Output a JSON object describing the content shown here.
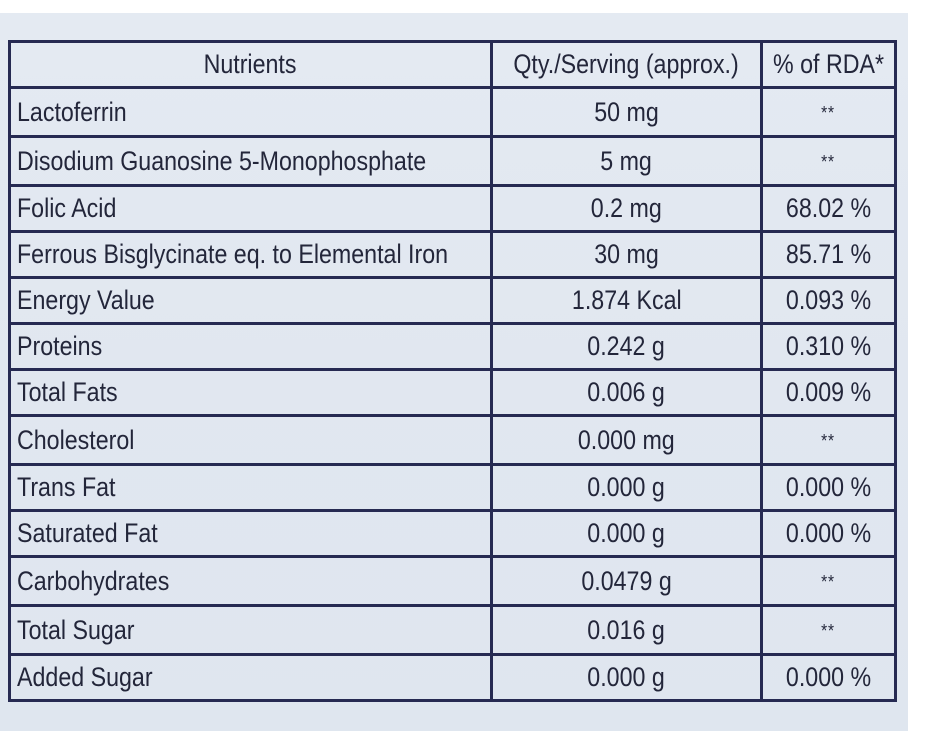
{
  "table": {
    "headers": {
      "nutrients": "Nutrients",
      "qty": "Qty./Serving (approx.)",
      "rda": "% of RDA*"
    },
    "rows": [
      {
        "nutrient": "Lactoferrin",
        "qty": "50 mg",
        "rda": "**"
      },
      {
        "nutrient": "Disodium Guanosine 5-Monophosphate",
        "qty": "5 mg",
        "rda": "**"
      },
      {
        "nutrient": "Folic Acid",
        "qty": "0.2 mg",
        "rda": "68.02 %"
      },
      {
        "nutrient": "Ferrous Bisglycinate eq. to Elemental Iron",
        "qty": "30 mg",
        "rda": "85.71 %"
      },
      {
        "nutrient": "Energy Value",
        "qty": "1.874 Kcal",
        "rda": "0.093 %"
      },
      {
        "nutrient": "Proteins",
        "qty": "0.242 g",
        "rda": "0.310 %"
      },
      {
        "nutrient": "Total Fats",
        "qty": "0.006 g",
        "rda": "0.009 %"
      },
      {
        "nutrient": "Cholesterol",
        "qty": "0.000 mg",
        "rda": "**"
      },
      {
        "nutrient": "Trans Fat",
        "qty": "0.000 g",
        "rda": "0.000 %"
      },
      {
        "nutrient": "Saturated Fat",
        "qty": "0.000 g",
        "rda": "0.000 %"
      },
      {
        "nutrient": "Carbohydrates",
        "qty": "0.0479 g",
        "rda": "**"
      },
      {
        "nutrient": "Total Sugar",
        "qty": "0.016 g",
        "rda": "**"
      },
      {
        "nutrient": "Added Sugar",
        "qty": "0.000 g",
        "rda": "0.000 %"
      }
    ]
  },
  "colors": {
    "border": "#262a52",
    "text": "#23263a",
    "background": "#e2e8f0"
  }
}
